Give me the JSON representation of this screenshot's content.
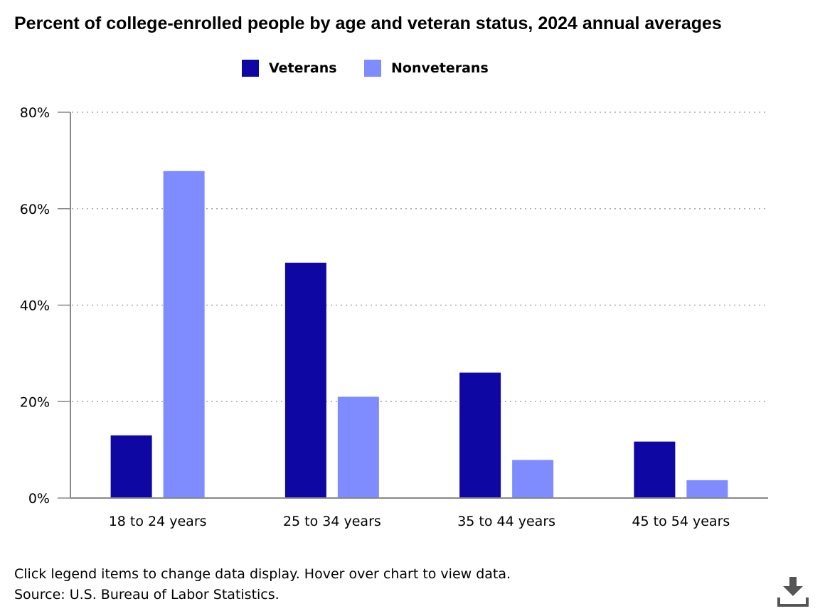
{
  "title": "Percent of college-enrolled people by age and veteran status, 2024 annual averages",
  "legend": {
    "items": [
      {
        "label": "Veterans",
        "color": "#0f07a4"
      },
      {
        "label": "Nonveterans",
        "color": "#7e8cff"
      }
    ]
  },
  "footer": {
    "note": "Click legend items to change data display. Hover over chart to view data.",
    "source": "Source: U.S. Bureau of Labor Statistics."
  },
  "icons": {
    "download": "download-icon"
  },
  "chart_data": {
    "type": "bar",
    "title": "Percent of college-enrolled people by age and veteran status, 2024 annual averages",
    "xlabel": "",
    "ylabel": "",
    "categories": [
      "18 to 24 years",
      "25 to 34 years",
      "35 to 44 years",
      "45 to 54 years"
    ],
    "series": [
      {
        "name": "Veterans",
        "color": "#0f07a4",
        "values": [
          13.0,
          48.8,
          26.0,
          11.7
        ]
      },
      {
        "name": "Nonveterans",
        "color": "#7e8cff",
        "values": [
          67.8,
          21.0,
          7.9,
          3.7
        ]
      }
    ],
    "ylim": [
      0,
      80
    ],
    "yticks": [
      0,
      20,
      40,
      60,
      80
    ],
    "ytick_labels": [
      "0%",
      "20%",
      "40%",
      "60%",
      "80%"
    ],
    "grid": true,
    "grid_style": "dotted",
    "legend_position": "top-center"
  }
}
